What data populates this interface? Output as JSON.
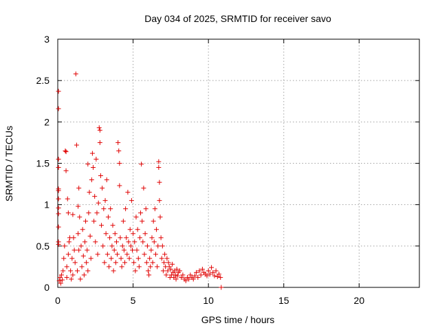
{
  "chart_data": {
    "type": "scatter",
    "title": "Day 034 of 2025, SRMTID for receiver savo",
    "xlabel": "GPS time / hours",
    "ylabel": "SRMTID / TECUs",
    "xlim": [
      0,
      24
    ],
    "ylim": [
      0,
      3
    ],
    "xticks": [
      0,
      5,
      10,
      15,
      20
    ],
    "xtick_labels": [
      "0",
      "5",
      "10",
      "15",
      "20"
    ],
    "yticks": [
      0,
      0.5,
      1,
      1.5,
      2,
      2.5,
      3
    ],
    "ytick_labels": [
      "0",
      "0.5",
      "1",
      "1.5",
      "2",
      "2.5",
      "3"
    ],
    "grid": true,
    "marker": "+",
    "marker_color": "#e00000",
    "series": [
      {
        "name": "savo",
        "points": [
          [
            0.05,
            2.37
          ],
          [
            0.05,
            2.16
          ],
          [
            0.05,
            1.55
          ],
          [
            0.05,
            1.45
          ],
          [
            0.05,
            1.19
          ],
          [
            0.05,
            1.17
          ],
          [
            0.05,
            1.07
          ],
          [
            0.05,
            0.96
          ],
          [
            0.05,
            0.89
          ],
          [
            0.05,
            0.73
          ],
          [
            0.05,
            0.55
          ],
          [
            0.05,
            0.52
          ],
          [
            0.1,
            0.08
          ],
          [
            0.15,
            0.12
          ],
          [
            0.2,
            0.05
          ],
          [
            0.25,
            0.15
          ],
          [
            0.3,
            0.09
          ],
          [
            0.35,
            0.2
          ],
          [
            0.4,
            0.35
          ],
          [
            0.45,
            0.5
          ],
          [
            0.5,
            1.65
          ],
          [
            0.55,
            1.64
          ],
          [
            0.55,
            1.41
          ],
          [
            0.6,
            0.12
          ],
          [
            0.6,
            0.25
          ],
          [
            0.65,
            1.07
          ],
          [
            0.7,
            0.9
          ],
          [
            0.7,
            0.4
          ],
          [
            0.75,
            0.55
          ],
          [
            0.8,
            0.6
          ],
          [
            0.85,
            0.2
          ],
          [
            0.9,
            0.1
          ],
          [
            0.95,
            0.35
          ],
          [
            1.0,
            0.88
          ],
          [
            1.0,
            0.15
          ],
          [
            1.05,
            0.6
          ],
          [
            1.1,
            0.45
          ],
          [
            1.15,
            0.3
          ],
          [
            1.2,
            2.58
          ],
          [
            1.25,
            1.72
          ],
          [
            1.3,
            0.2
          ],
          [
            1.35,
            0.65
          ],
          [
            1.35,
            0.98
          ],
          [
            1.4,
            1.2
          ],
          [
            1.4,
            0.45
          ],
          [
            1.45,
            0.85
          ],
          [
            1.5,
            0.1
          ],
          [
            1.55,
            0.5
          ],
          [
            1.6,
            0.25
          ],
          [
            1.65,
            0.7
          ],
          [
            1.7,
            0.38
          ],
          [
            1.75,
            0.15
          ],
          [
            1.8,
            0.55
          ],
          [
            1.85,
            0.8
          ],
          [
            1.9,
            0.3
          ],
          [
            1.95,
            0.45
          ],
          [
            2.0,
            1.49
          ],
          [
            2.0,
            0.2
          ],
          [
            2.05,
            0.9
          ],
          [
            2.1,
            1.15
          ],
          [
            2.15,
            0.62
          ],
          [
            2.2,
            0.35
          ],
          [
            2.25,
            1.3
          ],
          [
            2.3,
            1.62
          ],
          [
            2.35,
            1.45
          ],
          [
            2.4,
            0.8
          ],
          [
            2.45,
            1.1
          ],
          [
            2.5,
            0.55
          ],
          [
            2.55,
            1.55
          ],
          [
            2.6,
            0.9
          ],
          [
            2.65,
            0.4
          ],
          [
            2.7,
            1.02
          ],
          [
            2.75,
            1.93
          ],
          [
            2.8,
            1.9
          ],
          [
            2.8,
            1.75
          ],
          [
            2.85,
            1.35
          ],
          [
            2.9,
            0.75
          ],
          [
            2.95,
            1.2
          ],
          [
            3.0,
            0.5
          ],
          [
            3.05,
            0.95
          ],
          [
            3.1,
            0.3
          ],
          [
            3.15,
            1.05
          ],
          [
            3.2,
            0.65
          ],
          [
            3.25,
            1.3
          ],
          [
            3.3,
            0.4
          ],
          [
            3.35,
            0.85
          ],
          [
            3.4,
            0.25
          ],
          [
            3.45,
            0.6
          ],
          [
            3.5,
            0.95
          ],
          [
            3.55,
            0.35
          ],
          [
            3.6,
            0.5
          ],
          [
            3.65,
            0.75
          ],
          [
            3.7,
            0.2
          ],
          [
            3.75,
            0.45
          ],
          [
            3.8,
            0.65
          ],
          [
            3.85,
            0.3
          ],
          [
            3.9,
            0.55
          ],
          [
            3.95,
            0.4
          ],
          [
            4.0,
            1.75
          ],
          [
            4.05,
            1.65
          ],
          [
            4.1,
            1.5
          ],
          [
            4.1,
            1.23
          ],
          [
            4.15,
            0.6
          ],
          [
            4.2,
            0.35
          ],
          [
            4.25,
            0.25
          ],
          [
            4.3,
            0.5
          ],
          [
            4.35,
            0.8
          ],
          [
            4.4,
            0.45
          ],
          [
            4.45,
            0.3
          ],
          [
            4.5,
            0.95
          ],
          [
            4.55,
            0.6
          ],
          [
            4.6,
            0.4
          ],
          [
            4.65,
            1.15
          ],
          [
            4.7,
            0.55
          ],
          [
            4.75,
            0.35
          ],
          [
            4.8,
            0.7
          ],
          [
            4.85,
            0.5
          ],
          [
            4.9,
            1.05
          ],
          [
            4.95,
            0.45
          ],
          [
            5.0,
            0.65
          ],
          [
            5.05,
            0.3
          ],
          [
            5.1,
            0.55
          ],
          [
            5.15,
            0.2
          ],
          [
            5.2,
            0.85
          ],
          [
            5.25,
            0.45
          ],
          [
            5.3,
            0.7
          ],
          [
            5.35,
            0.35
          ],
          [
            5.4,
            0.25
          ],
          [
            5.45,
            0.6
          ],
          [
            5.5,
            0.9
          ],
          [
            5.55,
            1.49
          ],
          [
            5.6,
            0.8
          ],
          [
            5.65,
            0.55
          ],
          [
            5.7,
            1.2
          ],
          [
            5.75,
            0.4
          ],
          [
            5.8,
            0.65
          ],
          [
            5.85,
            0.95
          ],
          [
            5.9,
            0.3
          ],
          [
            5.95,
            0.5
          ],
          [
            6.0,
            0.2
          ],
          [
            6.05,
            0.15
          ],
          [
            6.1,
            0.35
          ],
          [
            6.15,
            0.25
          ],
          [
            6.2,
            0.45
          ],
          [
            6.25,
            0.6
          ],
          [
            6.3,
            0.3
          ],
          [
            6.35,
            0.8
          ],
          [
            6.4,
            0.55
          ],
          [
            6.45,
            0.95
          ],
          [
            6.5,
            0.4
          ],
          [
            6.55,
            0.7
          ],
          [
            6.6,
            0.25
          ],
          [
            6.65,
            0.5
          ],
          [
            6.7,
            1.52
          ],
          [
            6.7,
            1.45
          ],
          [
            6.75,
            1.27
          ],
          [
            6.75,
            1.05
          ],
          [
            6.8,
            0.85
          ],
          [
            6.85,
            0.6
          ],
          [
            6.9,
            0.35
          ],
          [
            6.95,
            0.5
          ],
          [
            7.0,
            0.2
          ],
          [
            7.05,
            0.3
          ],
          [
            7.1,
            0.4
          ],
          [
            7.15,
            0.25
          ],
          [
            7.2,
            0.15
          ],
          [
            7.25,
            0.35
          ],
          [
            7.3,
            0.2
          ],
          [
            7.35,
            0.3
          ],
          [
            7.4,
            0.25
          ],
          [
            7.45,
            0.12
          ],
          [
            7.5,
            0.22
          ],
          [
            7.55,
            0.15
          ],
          [
            7.6,
            0.28
          ],
          [
            7.65,
            0.18
          ],
          [
            7.7,
            0.12
          ],
          [
            7.75,
            0.2
          ],
          [
            7.8,
            0.15
          ],
          [
            7.85,
            0.1
          ],
          [
            7.9,
            0.22
          ],
          [
            7.95,
            0.14
          ],
          [
            8.0,
            0.18
          ],
          [
            8.1,
            0.2
          ],
          [
            8.2,
            0.12
          ],
          [
            8.3,
            0.15
          ],
          [
            8.4,
            0.1
          ],
          [
            8.5,
            0.08
          ],
          [
            8.6,
            0.12
          ],
          [
            8.7,
            0.1
          ],
          [
            8.8,
            0.15
          ],
          [
            8.9,
            0.12
          ],
          [
            9.0,
            0.1
          ],
          [
            9.1,
            0.14
          ],
          [
            9.2,
            0.18
          ],
          [
            9.3,
            0.12
          ],
          [
            9.4,
            0.2
          ],
          [
            9.5,
            0.15
          ],
          [
            9.6,
            0.22
          ],
          [
            9.7,
            0.18
          ],
          [
            9.8,
            0.16
          ],
          [
            9.9,
            0.14
          ],
          [
            10.0,
            0.2
          ],
          [
            10.1,
            0.16
          ],
          [
            10.2,
            0.24
          ],
          [
            10.3,
            0.18
          ],
          [
            10.4,
            0.14
          ],
          [
            10.5,
            0.2
          ],
          [
            10.6,
            0.13
          ],
          [
            10.7,
            0.16
          ],
          [
            10.8,
            0.12
          ],
          [
            10.85,
            0.0
          ]
        ]
      }
    ]
  }
}
